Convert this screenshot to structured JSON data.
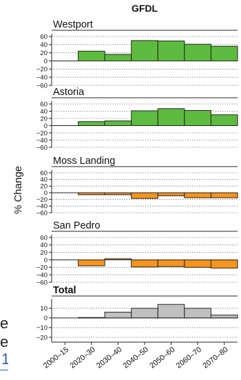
{
  "chart_data": {
    "type": "bar",
    "title": "GFDL",
    "ylabel": "% Change",
    "categories": [
      "2000–15",
      "2020–30",
      "2030–40",
      "2040–50",
      "2050–60",
      "2060–70",
      "2070–80"
    ],
    "panels": [
      {
        "name": "Westport",
        "color": "#5dbb3f",
        "ylim": [
          -60,
          60
        ],
        "ticks": [
          60,
          40,
          20,
          0,
          -20,
          -40,
          -60
        ],
        "values": [
          0,
          24,
          16,
          50,
          49,
          41,
          36
        ]
      },
      {
        "name": "Astoria",
        "color": "#5dbb3f",
        "ylim": [
          -60,
          60
        ],
        "ticks": [
          60,
          40,
          20,
          0,
          -20,
          -40,
          -60
        ],
        "values": [
          0,
          11,
          13,
          41,
          47,
          42,
          30
        ]
      },
      {
        "name": "Moss Landing",
        "color": "#f7941d",
        "ylim": [
          -60,
          60
        ],
        "ticks": [
          60,
          40,
          20,
          0,
          -20,
          -40,
          -60
        ],
        "values": [
          0,
          -6,
          -6,
          -17,
          -9,
          -15,
          -15
        ]
      },
      {
        "name": "San Pedro",
        "color": "#f7941d",
        "ylim": [
          -60,
          60
        ],
        "ticks": [
          60,
          40,
          20,
          0,
          -20,
          -40,
          -60
        ],
        "values": [
          0,
          -16,
          3,
          -19,
          -18,
          -20,
          -22
        ]
      },
      {
        "name": "Total",
        "color": "#c0c0c0",
        "ylim": [
          -25,
          17
        ],
        "ticks": [
          10,
          0,
          -10,
          -20
        ],
        "values": [
          0,
          0.5,
          6,
          10,
          14,
          10,
          3
        ]
      }
    ],
    "grid": "dotted horizontal"
  },
  "background_text": {
    "letters": [
      "e",
      "e"
    ],
    "link_fragment": "1"
  }
}
